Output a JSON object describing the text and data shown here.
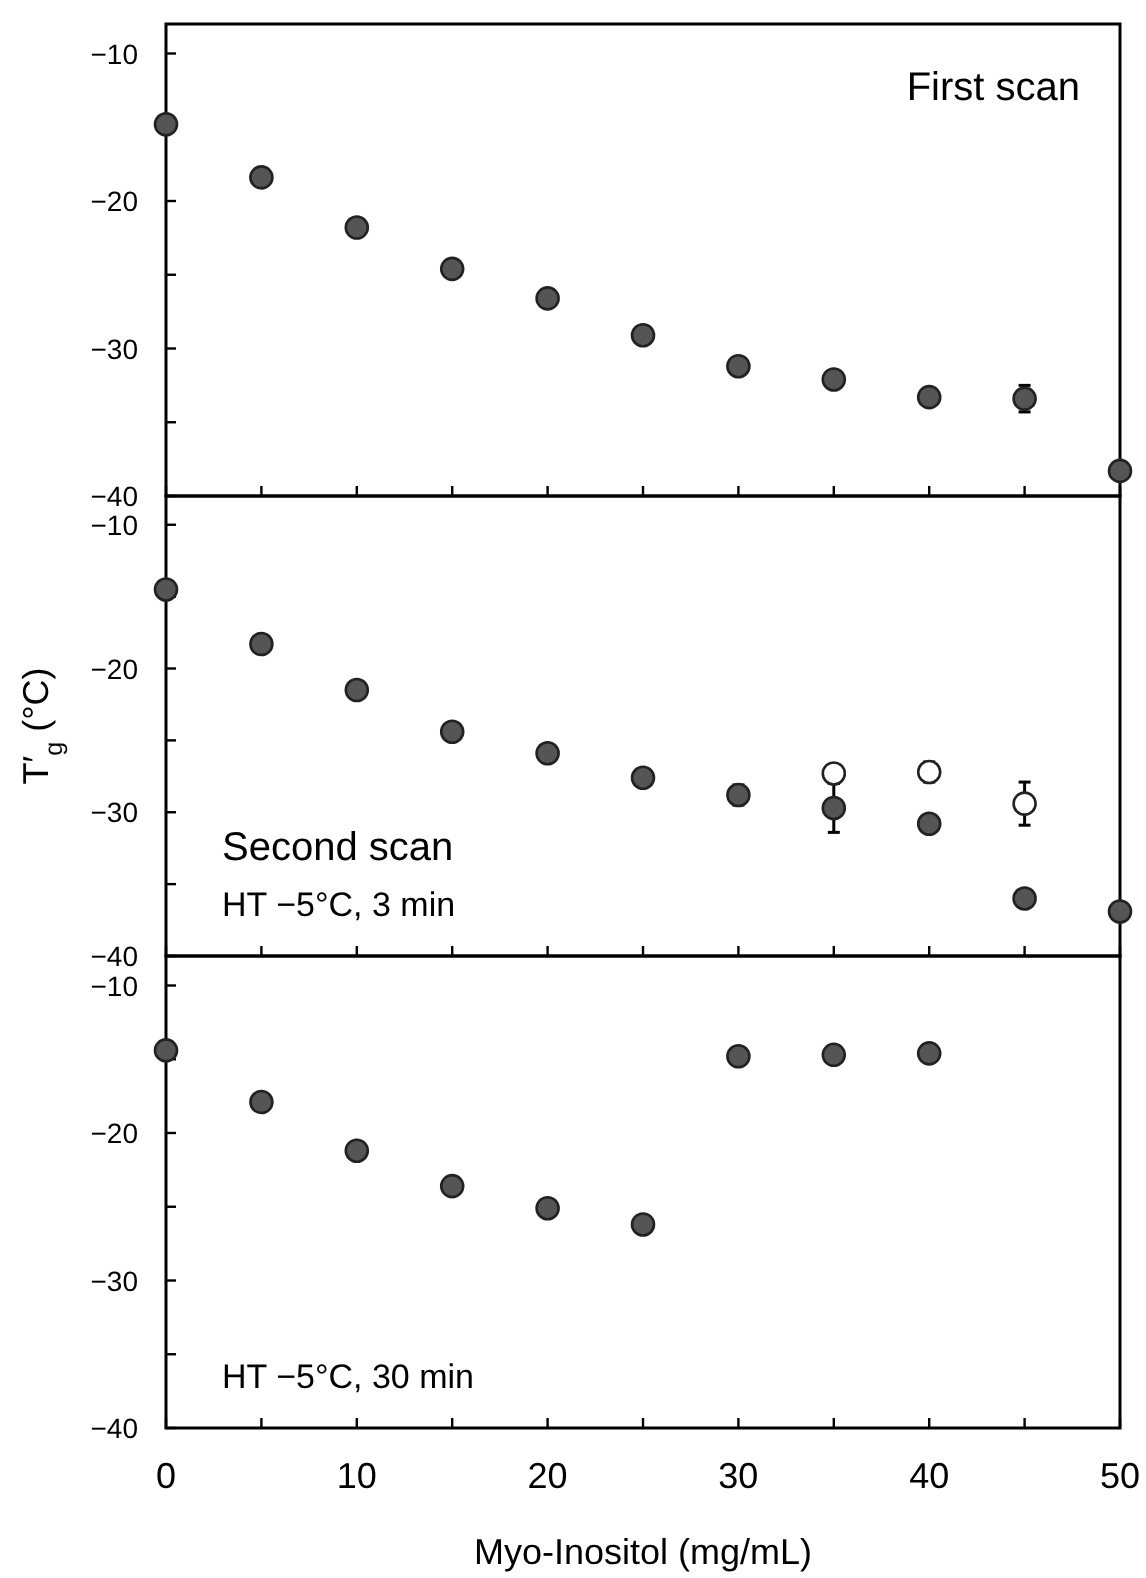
{
  "chart_data": [
    {
      "type": "scatter",
      "annotations": [
        "First scan"
      ],
      "x": [
        0,
        5,
        10,
        15,
        20,
        25,
        30,
        35,
        40,
        45,
        50
      ],
      "xlim": [
        0,
        50
      ],
      "xticks": [
        0,
        {
          "value": 5,
          "label": null
        },
        10,
        {
          "value": 15,
          "label": null
        },
        20,
        {
          "value": 25,
          "label": null
        },
        30,
        {
          "value": 35,
          "label": null
        },
        40,
        {
          "value": 45,
          "label": null
        },
        50
      ],
      "ylim": [
        -40,
        -8
      ],
      "yticks": [
        -40,
        {
          "value": -35,
          "label": null
        },
        -30,
        {
          "value": -25,
          "label": null
        },
        -20,
        {
          "value": -15,
          "label": null
        },
        -10
      ],
      "tick_labels": "y",
      "marker": "circle",
      "series": [
        {
          "color": "#555555",
          "values": [
            -14.8,
            -18.4,
            -21.8,
            -24.6,
            -26.6,
            -29.1,
            -31.2,
            -32.1,
            -33.3,
            -33.4,
            -38.3
          ],
          "errors": [
            null,
            null,
            null,
            null,
            null,
            null,
            null,
            null,
            null,
            0.9,
            null
          ]
        }
      ]
    },
    {
      "type": "scatter",
      "ylabel": "T′$_{g}$ (°C)",
      "annotations": [
        "Second scan",
        "HT −5°C, 3 min"
      ],
      "x": [
        0,
        5,
        10,
        15,
        20,
        25,
        30,
        35,
        40,
        45,
        50
      ],
      "xlim": [
        0,
        50
      ],
      "xticks": [
        0,
        {
          "value": 5,
          "label": null
        },
        10,
        {
          "value": 15,
          "label": null
        },
        20,
        {
          "value": 25,
          "label": null
        },
        30,
        {
          "value": 35,
          "label": null
        },
        40,
        {
          "value": 45,
          "label": null
        },
        50
      ],
      "ylim": [
        -40,
        -8
      ],
      "yticks": [
        -40,
        {
          "value": -35,
          "label": null
        },
        -30,
        {
          "value": -25,
          "label": null
        },
        -20,
        {
          "value": -15,
          "label": null
        },
        -10
      ],
      "tick_labels": "y",
      "marker": "circle",
      "series": [
        {
          "color": "#555555",
          "values": [
            -14.5,
            -18.3,
            -21.5,
            -24.4,
            -25.9,
            -27.6,
            -28.8,
            -29.7,
            -30.8,
            -36.0,
            -36.9
          ],
          "errors": [
            null,
            null,
            null,
            null,
            null,
            null,
            0.7,
            1.7,
            null,
            null,
            null
          ]
        },
        {
          "color": "#ffffff",
          "x": [
            35,
            40,
            45
          ],
          "values": [
            -27.3,
            -27.2,
            -29.4
          ],
          "errors": [
            null,
            0.7,
            1.5
          ]
        }
      ]
    },
    {
      "type": "scatter",
      "xlabel": "Myo-Inositol (mg/mL)",
      "annotations": [
        "HT −5°C, 30 min"
      ],
      "x": [
        0,
        5,
        10,
        15,
        20,
        25,
        30,
        35,
        40
      ],
      "xlim": [
        0,
        50
      ],
      "xticks": [
        0,
        {
          "value": 5,
          "label": null
        },
        10,
        {
          "value": 15,
          "label": null
        },
        20,
        {
          "value": 25,
          "label": null
        },
        30,
        {
          "value": 35,
          "label": null
        },
        40,
        {
          "value": 45,
          "label": null
        },
        50
      ],
      "ylim": [
        -40,
        -8
      ],
      "yticks": [
        -40,
        {
          "value": -35,
          "label": null
        },
        -30,
        {
          "value": -25,
          "label": null
        },
        -20,
        {
          "value": -15,
          "label": null
        },
        -10
      ],
      "marker": "circle",
      "series": [
        {
          "color": "#555555",
          "values": [
            -14.4,
            -17.9,
            -21.2,
            -23.6,
            -25.1,
            -26.2,
            -14.8,
            -14.7,
            -14.6
          ]
        }
      ]
    }
  ]
}
